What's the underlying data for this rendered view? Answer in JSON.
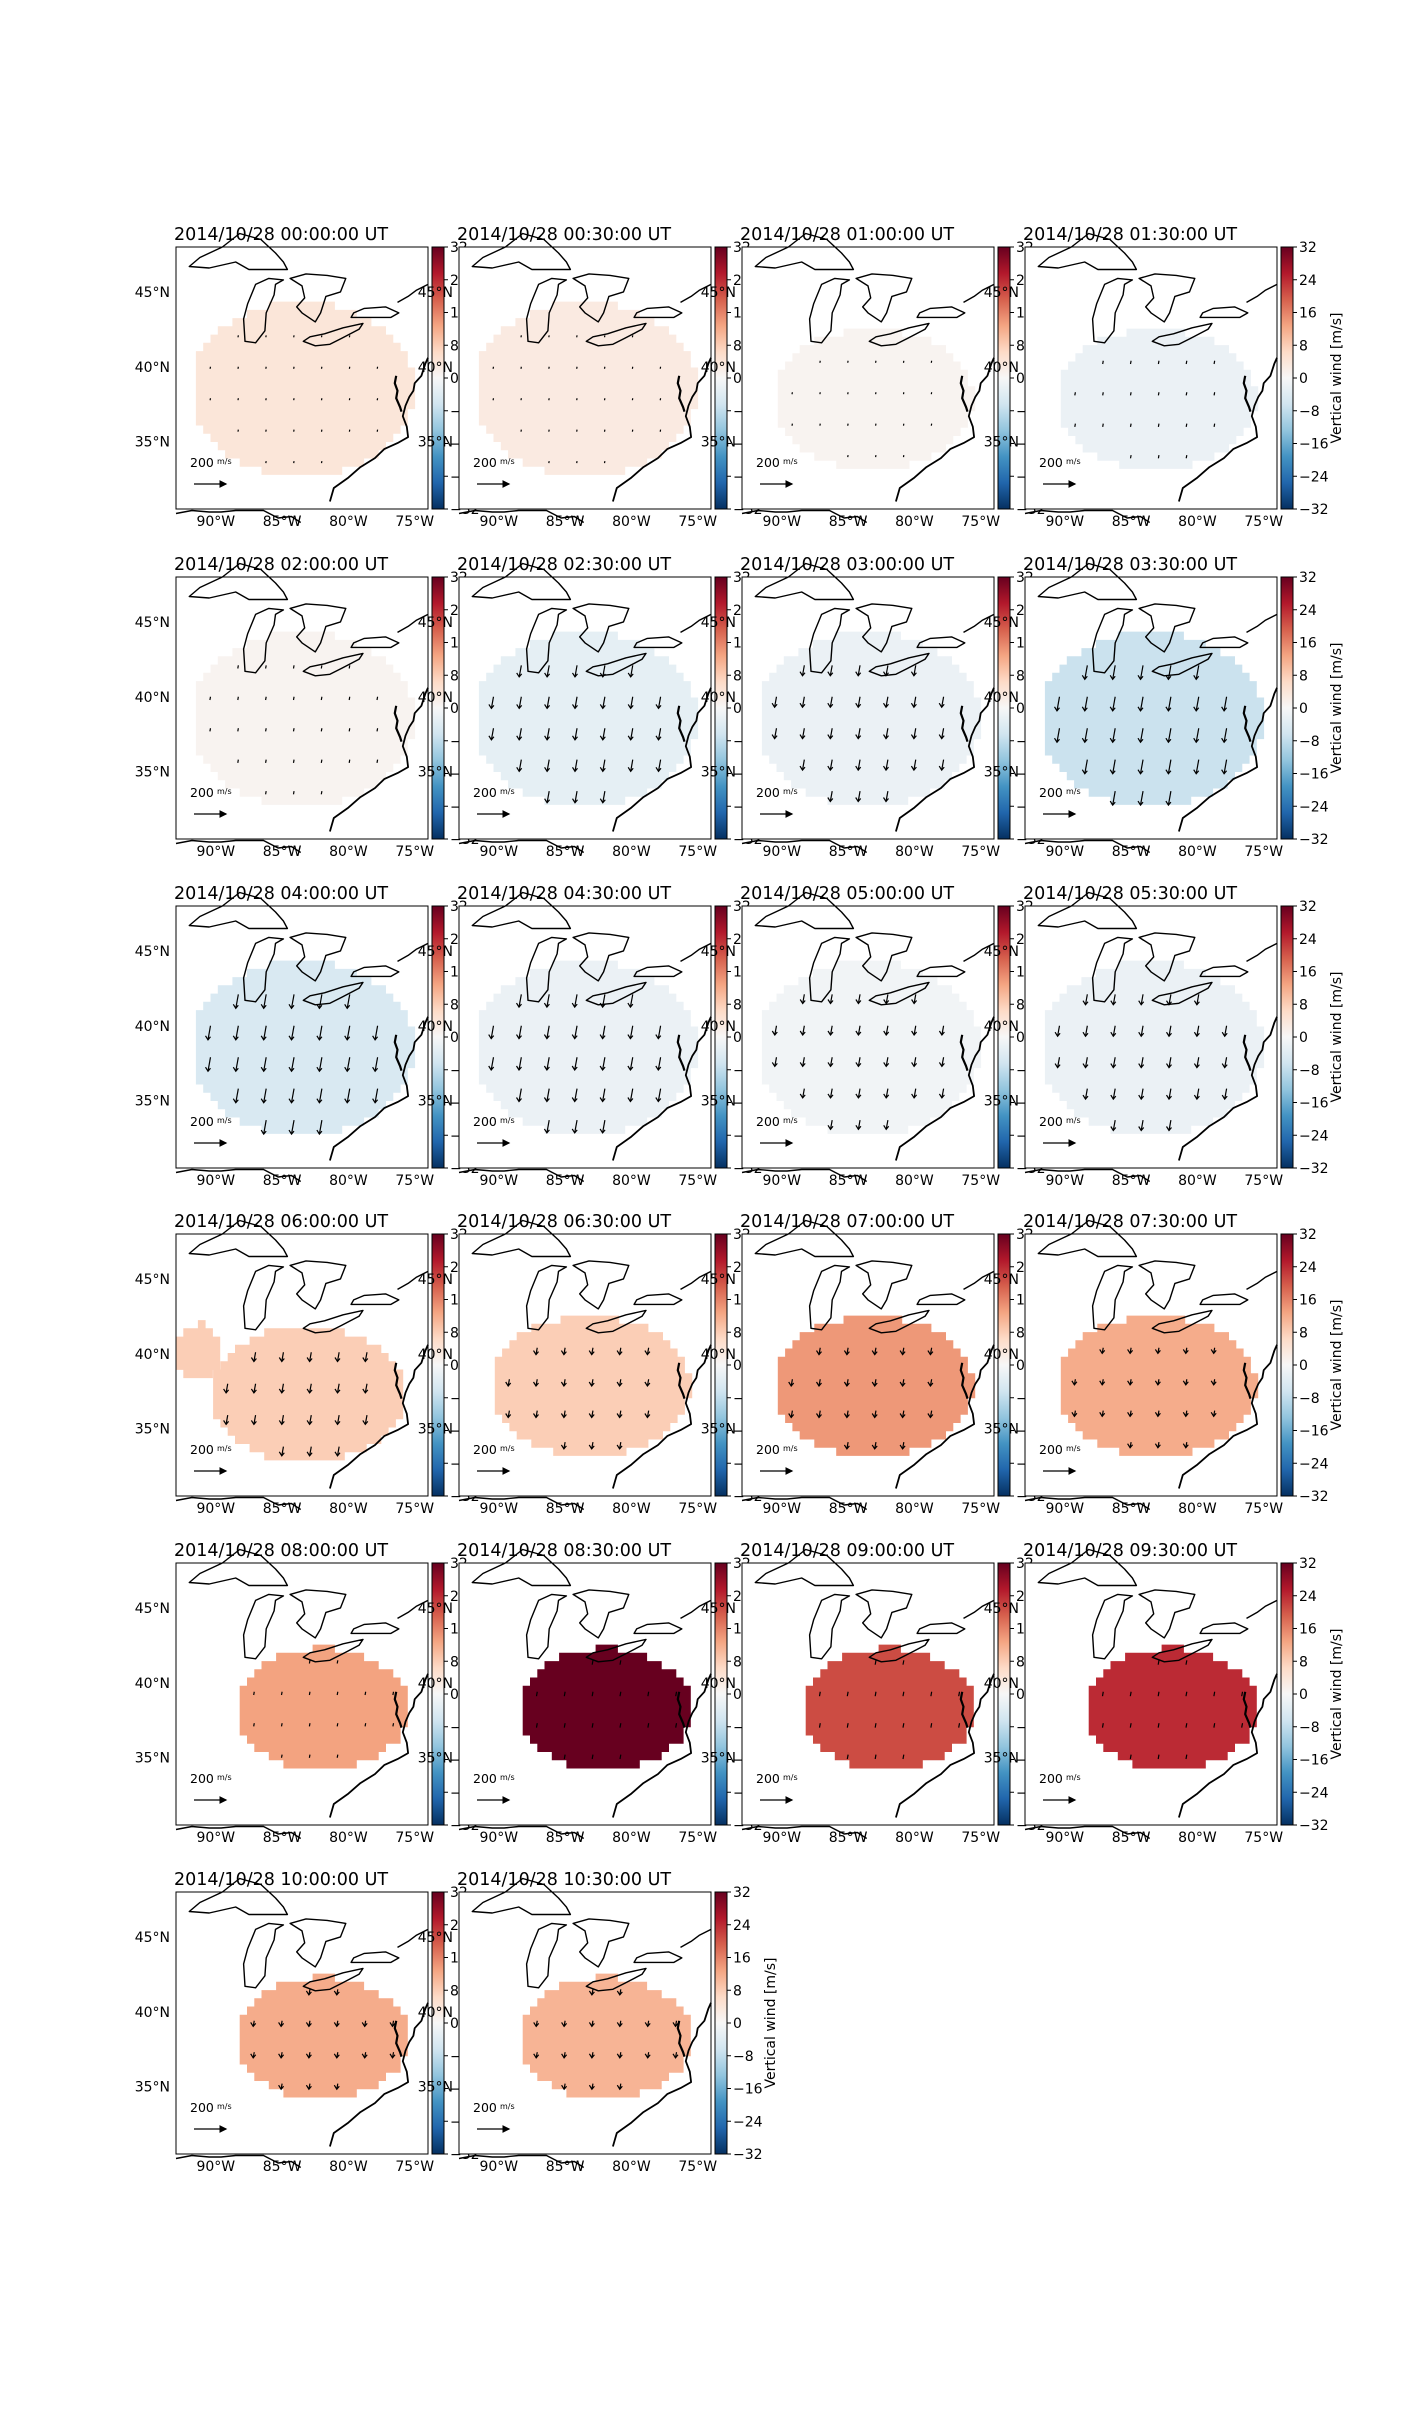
{
  "figure": {
    "colorbar_label": "Vertical wind [m/s]",
    "colorbar_ticks": [
      "32",
      "24",
      "16",
      "8",
      "0",
      "−8",
      "−16",
      "−24",
      "−32"
    ],
    "lat_labels": [
      "45°N",
      "40°N",
      "35°N"
    ],
    "lon_labels": [
      "90°W",
      "85°W",
      "80°W",
      "75°W"
    ],
    "quiver_key": "200",
    "quiver_key_unit_num": "m",
    "quiver_key_unit_den": "s"
  },
  "chart_data": [
    {
      "type": "heatmap",
      "title": "2014/10/28 00:00:00 UT",
      "value": 4,
      "flow": 0.0,
      "shape": "full"
    },
    {
      "type": "heatmap",
      "title": "2014/10/28 00:30:00 UT",
      "value": 3,
      "flow": 0.0,
      "shape": "full"
    },
    {
      "type": "heatmap",
      "title": "2014/10/28 01:00:00 UT",
      "value": 1,
      "flow": 0.0,
      "shape": "mid"
    },
    {
      "type": "heatmap",
      "title": "2014/10/28 01:30:00 UT",
      "value": -2,
      "flow": 0.1,
      "shape": "mid"
    },
    {
      "type": "heatmap",
      "title": "2014/10/28 02:00:00 UT",
      "value": 1,
      "flow": 0.1,
      "shape": "full"
    },
    {
      "type": "heatmap",
      "title": "2014/10/28 02:30:00 UT",
      "value": -3,
      "flow": 0.8,
      "shape": "full"
    },
    {
      "type": "heatmap",
      "title": "2014/10/28 03:00:00 UT",
      "value": -2,
      "flow": 0.7,
      "shape": "full"
    },
    {
      "type": "heatmap",
      "title": "2014/10/28 03:30:00 UT",
      "value": -7,
      "flow": 1.0,
      "shape": "full"
    },
    {
      "type": "heatmap",
      "title": "2014/10/28 04:00:00 UT",
      "value": -5,
      "flow": 1.0,
      "shape": "full"
    },
    {
      "type": "heatmap",
      "title": "2014/10/28 04:30:00 UT",
      "value": -2,
      "flow": 0.9,
      "shape": "full"
    },
    {
      "type": "heatmap",
      "title": "2014/10/28 05:00:00 UT",
      "value": -1,
      "flow": 0.6,
      "shape": "full"
    },
    {
      "type": "heatmap",
      "title": "2014/10/28 05:30:00 UT",
      "value": -2,
      "flow": 0.7,
      "shape": "full"
    },
    {
      "type": "heatmap",
      "title": "2014/10/28 06:00:00 UT",
      "value": 8,
      "flow": 0.6,
      "shape": "lobe"
    },
    {
      "type": "heatmap",
      "title": "2014/10/28 06:30:00 UT",
      "value": 8,
      "flow": 0.4,
      "shape": "mid"
    },
    {
      "type": "heatmap",
      "title": "2014/10/28 07:00:00 UT",
      "value": 14,
      "flow": 0.4,
      "shape": "mid"
    },
    {
      "type": "heatmap",
      "title": "2014/10/28 07:30:00 UT",
      "value": 12,
      "flow": 0.3,
      "shape": "mid"
    },
    {
      "type": "heatmap",
      "title": "2014/10/28 08:00:00 UT",
      "value": 13,
      "flow": 0.1,
      "shape": "small"
    },
    {
      "type": "heatmap",
      "title": "2014/10/28 08:30:00 UT",
      "value": 32,
      "flow": 0.2,
      "shape": "small"
    },
    {
      "type": "heatmap",
      "title": "2014/10/28 09:00:00 UT",
      "value": 21,
      "flow": 0.2,
      "shape": "small"
    },
    {
      "type": "heatmap",
      "title": "2014/10/28 09:30:00 UT",
      "value": 24,
      "flow": 0.2,
      "shape": "small"
    },
    {
      "type": "heatmap",
      "title": "2014/10/28 10:00:00 UT",
      "value": 12,
      "flow": 0.3,
      "shape": "small"
    },
    {
      "type": "heatmap",
      "title": "2014/10/28 10:30:00 UT",
      "value": 11,
      "flow": 0.3,
      "shape": "small"
    }
  ],
  "colorscale": {
    "vmin": -32,
    "vmax": 32,
    "stops": [
      "#053061",
      "#2166ac",
      "#4393c3",
      "#92c5de",
      "#d1e5f0",
      "#f7f7f7",
      "#fddbc7",
      "#f4a582",
      "#d6604d",
      "#b2182b",
      "#67001f"
    ]
  }
}
